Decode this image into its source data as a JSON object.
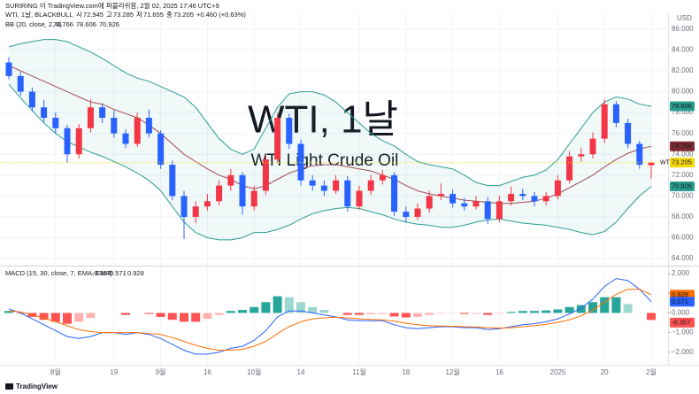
{
  "header": {
    "publisher": "SURIRING 이 TradingView.com에 퍼블리쉬함, 2월 02, 2025 17:46 UTC+9",
    "symbol": "WTI, 1날, BLACKBULL",
    "ohlc": [
      [
        "시",
        "72.945"
      ],
      [
        "고",
        "73.285"
      ],
      [
        "저",
        "71.655"
      ],
      [
        "종",
        "73.205"
      ]
    ],
    "change": "+0.460 (+0.63%)",
    "bb_name": "BB (20, close, 2, 0)",
    "bb_values": [
      "74.766",
      "78.606",
      "70.926"
    ],
    "macd_name": "MACD (15, 30, close, 7, EMA, EMA)",
    "macd_values": [
      "-0.357",
      "0.571",
      "0.928"
    ],
    "currency": "USD"
  },
  "footer": {
    "brand": "TradingView"
  },
  "chart_data": [
    {
      "type": "candlestick",
      "watermark": [
        "WTI, 1날",
        "WTI Light Crude Oil"
      ],
      "symbol_tag": "WTI",
      "categories": [
        null,
        null,
        null,
        null,
        "8월",
        null,
        null,
        null,
        null,
        "19",
        null,
        null,
        null,
        "9월",
        null,
        null,
        null,
        "16",
        null,
        null,
        null,
        "10월",
        null,
        null,
        null,
        "14",
        null,
        null,
        null,
        null,
        "11월",
        null,
        null,
        null,
        "18",
        null,
        null,
        null,
        "12월",
        null,
        null,
        null,
        "16",
        null,
        null,
        null,
        null,
        "2025",
        null,
        null,
        null,
        "20",
        null,
        null,
        null,
        "2월"
      ],
      "candles": [
        [
          82.8,
          83.3,
          81.2,
          81.5
        ],
        [
          81.5,
          81.9,
          79.6,
          80.0
        ],
        [
          80.0,
          80.4,
          78.1,
          78.5
        ],
        [
          78.5,
          79.2,
          77.1,
          77.5
        ],
        [
          77.5,
          78.0,
          76.0,
          76.5
        ],
        [
          76.5,
          76.8,
          73.2,
          74.0
        ],
        [
          74.0,
          76.9,
          73.6,
          76.5
        ],
        [
          76.5,
          79.3,
          76.1,
          78.5
        ],
        [
          78.5,
          78.9,
          77.0,
          77.5
        ],
        [
          77.5,
          78.2,
          75.6,
          76.0
        ],
        [
          76.0,
          76.4,
          74.6,
          75.0
        ],
        [
          75.0,
          78.0,
          74.7,
          77.5
        ],
        [
          77.5,
          78.3,
          75.6,
          76.0
        ],
        [
          76.0,
          76.3,
          72.6,
          73.0
        ],
        [
          73.0,
          73.4,
          69.6,
          70.0
        ],
        [
          70.0,
          70.5,
          65.9,
          68.0
        ],
        [
          68.0,
          69.5,
          67.4,
          69.0
        ],
        [
          69.0,
          70.2,
          68.6,
          69.5
        ],
        [
          69.5,
          71.5,
          69.1,
          71.0
        ],
        [
          71.0,
          72.6,
          70.5,
          72.0
        ],
        [
          72.0,
          72.3,
          68.2,
          69.0
        ],
        [
          69.0,
          71.0,
          68.6,
          70.5
        ],
        [
          70.5,
          74.0,
          70.1,
          73.5
        ],
        [
          73.5,
          78.0,
          73.2,
          77.5
        ],
        [
          77.5,
          77.9,
          74.5,
          75.0
        ],
        [
          75.0,
          75.4,
          71.0,
          71.5
        ],
        [
          71.5,
          72.0,
          70.5,
          71.0
        ],
        [
          71.0,
          71.5,
          70.0,
          70.5
        ],
        [
          70.5,
          72.0,
          70.2,
          71.5
        ],
        [
          71.5,
          71.9,
          68.5,
          69.0
        ],
        [
          69.0,
          71.0,
          68.7,
          70.5
        ],
        [
          70.5,
          72.0,
          70.1,
          71.5
        ],
        [
          71.5,
          72.5,
          71.1,
          72.0
        ],
        [
          72.0,
          72.3,
          68.1,
          68.5
        ],
        [
          68.5,
          69.0,
          67.5,
          68.0
        ],
        [
          68.0,
          69.3,
          67.7,
          68.8
        ],
        [
          68.8,
          70.5,
          68.4,
          70.0
        ],
        [
          70.0,
          71.2,
          69.6,
          70.2
        ],
        [
          70.2,
          70.6,
          68.9,
          69.3
        ],
        [
          69.3,
          69.8,
          68.6,
          69.0
        ],
        [
          69.0,
          70.0,
          68.7,
          69.5
        ],
        [
          69.5,
          69.9,
          67.3,
          67.8
        ],
        [
          67.8,
          70.0,
          67.5,
          69.5
        ],
        [
          69.5,
          70.9,
          69.1,
          70.2
        ],
        [
          70.2,
          70.7,
          69.6,
          70.0
        ],
        [
          70.0,
          70.4,
          69.0,
          69.5
        ],
        [
          69.5,
          70.4,
          69.1,
          70.0
        ],
        [
          70.0,
          72.0,
          69.7,
          71.5
        ],
        [
          71.5,
          74.3,
          71.2,
          73.8
        ],
        [
          73.8,
          74.6,
          73.3,
          74.0
        ],
        [
          74.0,
          76.1,
          73.6,
          75.5
        ],
        [
          75.5,
          79.3,
          75.1,
          78.8
        ],
        [
          78.8,
          79.1,
          76.6,
          77.0
        ],
        [
          77.0,
          77.4,
          74.6,
          75.0
        ],
        [
          75.0,
          75.3,
          72.6,
          73.0
        ],
        [
          72.945,
          73.285,
          71.655,
          73.205
        ]
      ],
      "bands": {
        "basis": [
          82.5,
          82.0,
          81.5,
          81.0,
          80.5,
          80.0,
          79.5,
          79.0,
          78.8,
          78.3,
          77.9,
          77.5,
          76.8,
          76.0,
          75.0,
          74.0,
          73.3,
          72.6,
          72.0,
          71.6,
          71.0,
          70.7,
          71.0,
          71.6,
          72.2,
          72.6,
          72.9,
          73.0,
          73.0,
          72.8,
          72.6,
          72.4,
          72.0,
          71.6,
          71.0,
          70.5,
          70.2,
          70.0,
          69.8,
          69.6,
          69.5,
          69.4,
          69.3,
          69.3,
          69.4,
          69.5,
          69.8,
          70.2,
          70.8,
          71.4,
          72.0,
          72.8,
          73.5,
          74.1,
          74.5,
          74.766
        ],
        "upper": [
          84.3,
          84.6,
          84.8,
          85.0,
          85.0,
          84.8,
          84.3,
          83.8,
          83.2,
          82.5,
          81.8,
          81.3,
          81.0,
          80.5,
          80.0,
          79.5,
          78.5,
          77.0,
          75.5,
          74.5,
          74.0,
          74.5,
          76.5,
          78.5,
          79.8,
          80.0,
          80.0,
          79.7,
          79.0,
          78.0,
          77.0,
          76.0,
          75.3,
          74.8,
          74.0,
          73.3,
          73.0,
          72.8,
          72.6,
          72.0,
          71.3,
          71.0,
          71.0,
          71.4,
          71.8,
          72.0,
          72.5,
          73.5,
          75.0,
          76.5,
          78.0,
          79.0,
          79.5,
          79.3,
          78.8,
          78.606
        ],
        "lower": [
          80.7,
          79.4,
          78.2,
          77.0,
          76.0,
          75.2,
          74.7,
          74.2,
          73.8,
          73.3,
          72.8,
          72.2,
          71.5,
          70.5,
          69.0,
          67.5,
          66.5,
          66.0,
          65.8,
          65.8,
          66.0,
          66.5,
          66.5,
          66.8,
          67.2,
          67.8,
          68.3,
          68.6,
          68.8,
          68.9,
          68.8,
          68.5,
          68.2,
          67.8,
          67.5,
          67.3,
          67.2,
          67.0,
          67.0,
          67.2,
          67.5,
          67.7,
          67.8,
          67.6,
          67.4,
          67.3,
          67.2,
          67.0,
          66.8,
          66.5,
          66.3,
          66.6,
          67.5,
          68.8,
          70.0,
          70.926
        ],
        "basis_color": "#a34b53",
        "band_color": "#2a9d8f",
        "fill_color": "rgba(38,166,154,0.07)"
      },
      "up_color": "#f23645",
      "down_color": "#2962ff",
      "last_price_line": true,
      "grid": true,
      "ylim": [
        63.5,
        87.6
      ],
      "yticks": [
        {
          "value": 64,
          "label": "64.000"
        },
        {
          "value": 66,
          "label": "66.000"
        },
        {
          "value": 68,
          "label": "68.000"
        },
        {
          "value": 70,
          "label": "70.000"
        },
        {
          "value": 72,
          "label": "72.000"
        },
        {
          "value": 74,
          "label": "74.000"
        },
        {
          "value": 76,
          "label": "76.000"
        },
        {
          "value": 78,
          "label": "78.000"
        },
        {
          "value": 80,
          "label": "80.000"
        },
        {
          "value": 82,
          "label": "82.000"
        },
        {
          "value": 84,
          "label": "84.000"
        },
        {
          "value": 86,
          "label": "86.000"
        }
      ]
    },
    {
      "type": "macd",
      "histogram": [
        0.1,
        -0.05,
        -0.2,
        -0.35,
        -0.45,
        -0.55,
        -0.45,
        -0.25,
        0.0,
        0.0,
        -0.1,
        0.0,
        -0.05,
        -0.2,
        -0.35,
        -0.45,
        -0.45,
        -0.3,
        -0.1,
        0.1,
        0.15,
        0.3,
        0.55,
        0.85,
        0.8,
        0.55,
        0.3,
        0.15,
        0.02,
        -0.1,
        -0.1,
        -0.07,
        -0.05,
        -0.18,
        -0.23,
        -0.2,
        -0.1,
        -0.03,
        -0.02,
        -0.05,
        -0.04,
        -0.1,
        -0.03,
        0.05,
        0.1,
        0.1,
        0.13,
        0.18,
        0.3,
        0.4,
        0.55,
        0.8,
        0.8,
        0.45,
        0.0,
        -0.357
      ],
      "macd": [
        0.2,
        0.0,
        -0.3,
        -0.6,
        -0.9,
        -1.2,
        -1.3,
        -1.2,
        -1.0,
        -1.0,
        -1.1,
        -1.0,
        -1.1,
        -1.3,
        -1.6,
        -1.9,
        -2.1,
        -2.1,
        -2.0,
        -1.8,
        -1.7,
        -1.4,
        -0.9,
        -0.2,
        0.1,
        0.1,
        0.0,
        -0.1,
        -0.2,
        -0.35,
        -0.4,
        -0.4,
        -0.4,
        -0.6,
        -0.75,
        -0.8,
        -0.75,
        -0.7,
        -0.7,
        -0.75,
        -0.75,
        -0.85,
        -0.8,
        -0.7,
        -0.6,
        -0.55,
        -0.45,
        -0.3,
        -0.05,
        0.25,
        0.7,
        1.35,
        1.75,
        1.65,
        1.2,
        0.571
      ],
      "signal": [
        0.1,
        0.05,
        -0.1,
        -0.25,
        -0.45,
        -0.65,
        -0.85,
        -0.95,
        -1.0,
        -1.0,
        -1.0,
        -1.0,
        -1.05,
        -1.1,
        -1.25,
        -1.45,
        -1.65,
        -1.8,
        -1.9,
        -1.9,
        -1.85,
        -1.7,
        -1.45,
        -1.05,
        -0.7,
        -0.45,
        -0.3,
        -0.25,
        -0.22,
        -0.25,
        -0.3,
        -0.33,
        -0.35,
        -0.42,
        -0.52,
        -0.6,
        -0.65,
        -0.67,
        -0.68,
        -0.7,
        -0.71,
        -0.75,
        -0.77,
        -0.75,
        -0.7,
        -0.65,
        -0.58,
        -0.48,
        -0.35,
        -0.15,
        0.15,
        0.55,
        0.95,
        1.2,
        1.2,
        0.928
      ],
      "macd_color": "#2962ff",
      "signal_color": "#ff6d00",
      "pos_color": "#26a69a",
      "neg_color": "#ff5252",
      "ylim": [
        -2.55,
        2.32
      ],
      "yticks": [
        {
          "value": -2,
          "label": "−2.000"
        },
        {
          "value": -1,
          "label": "−1.000"
        },
        {
          "value": 0,
          "label": "0.000"
        },
        {
          "value": 1,
          "label": "1.000"
        },
        {
          "value": 2,
          "label": "2.000"
        }
      ]
    }
  ]
}
